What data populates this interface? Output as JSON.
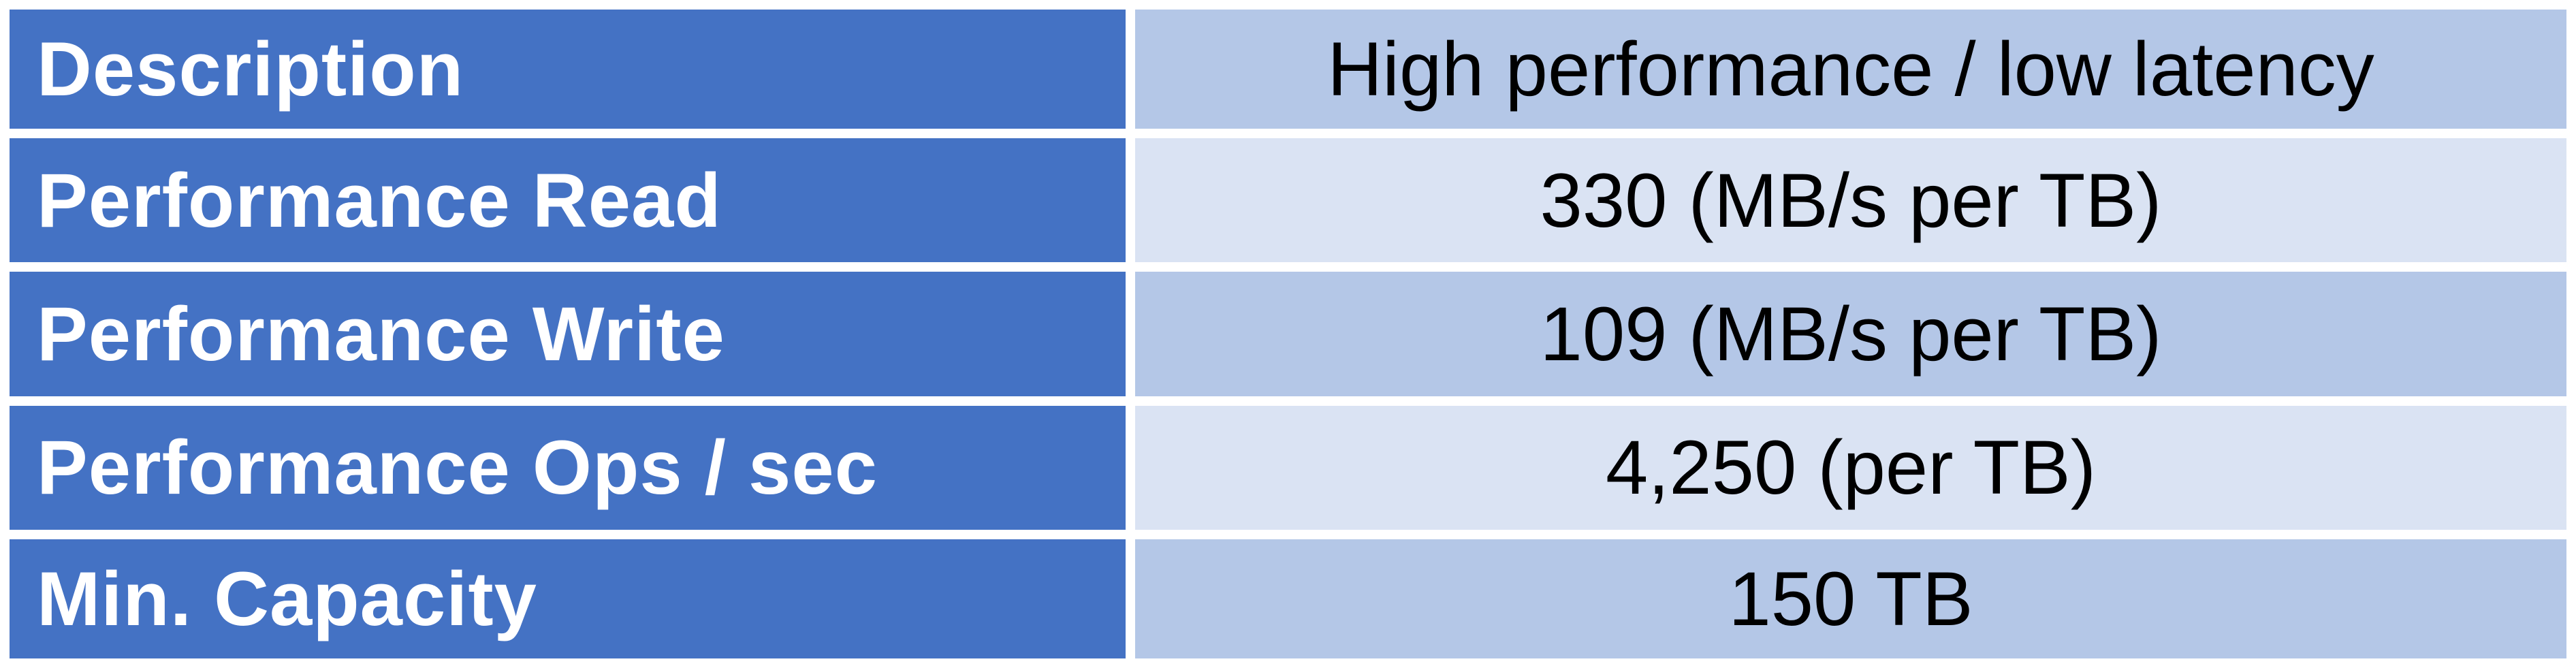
{
  "table": {
    "rows": [
      {
        "label": "Description",
        "value": "High performance / low latency"
      },
      {
        "label": "Performance Read",
        "value": "330 (MB/s per TB)"
      },
      {
        "label": "Performance Write",
        "value": "109 (MB/s per TB)"
      },
      {
        "label": "Performance Ops / sec",
        "value": "4,250 (per TB)"
      },
      {
        "label": "Min. Capacity",
        "value": "150 TB"
      }
    ]
  },
  "colors": {
    "label_background": "#4472c4",
    "value_background": "#b4c7e7",
    "value_background_alt": "#dae3f3",
    "label_text": "#ffffff",
    "value_text": "#000000"
  }
}
